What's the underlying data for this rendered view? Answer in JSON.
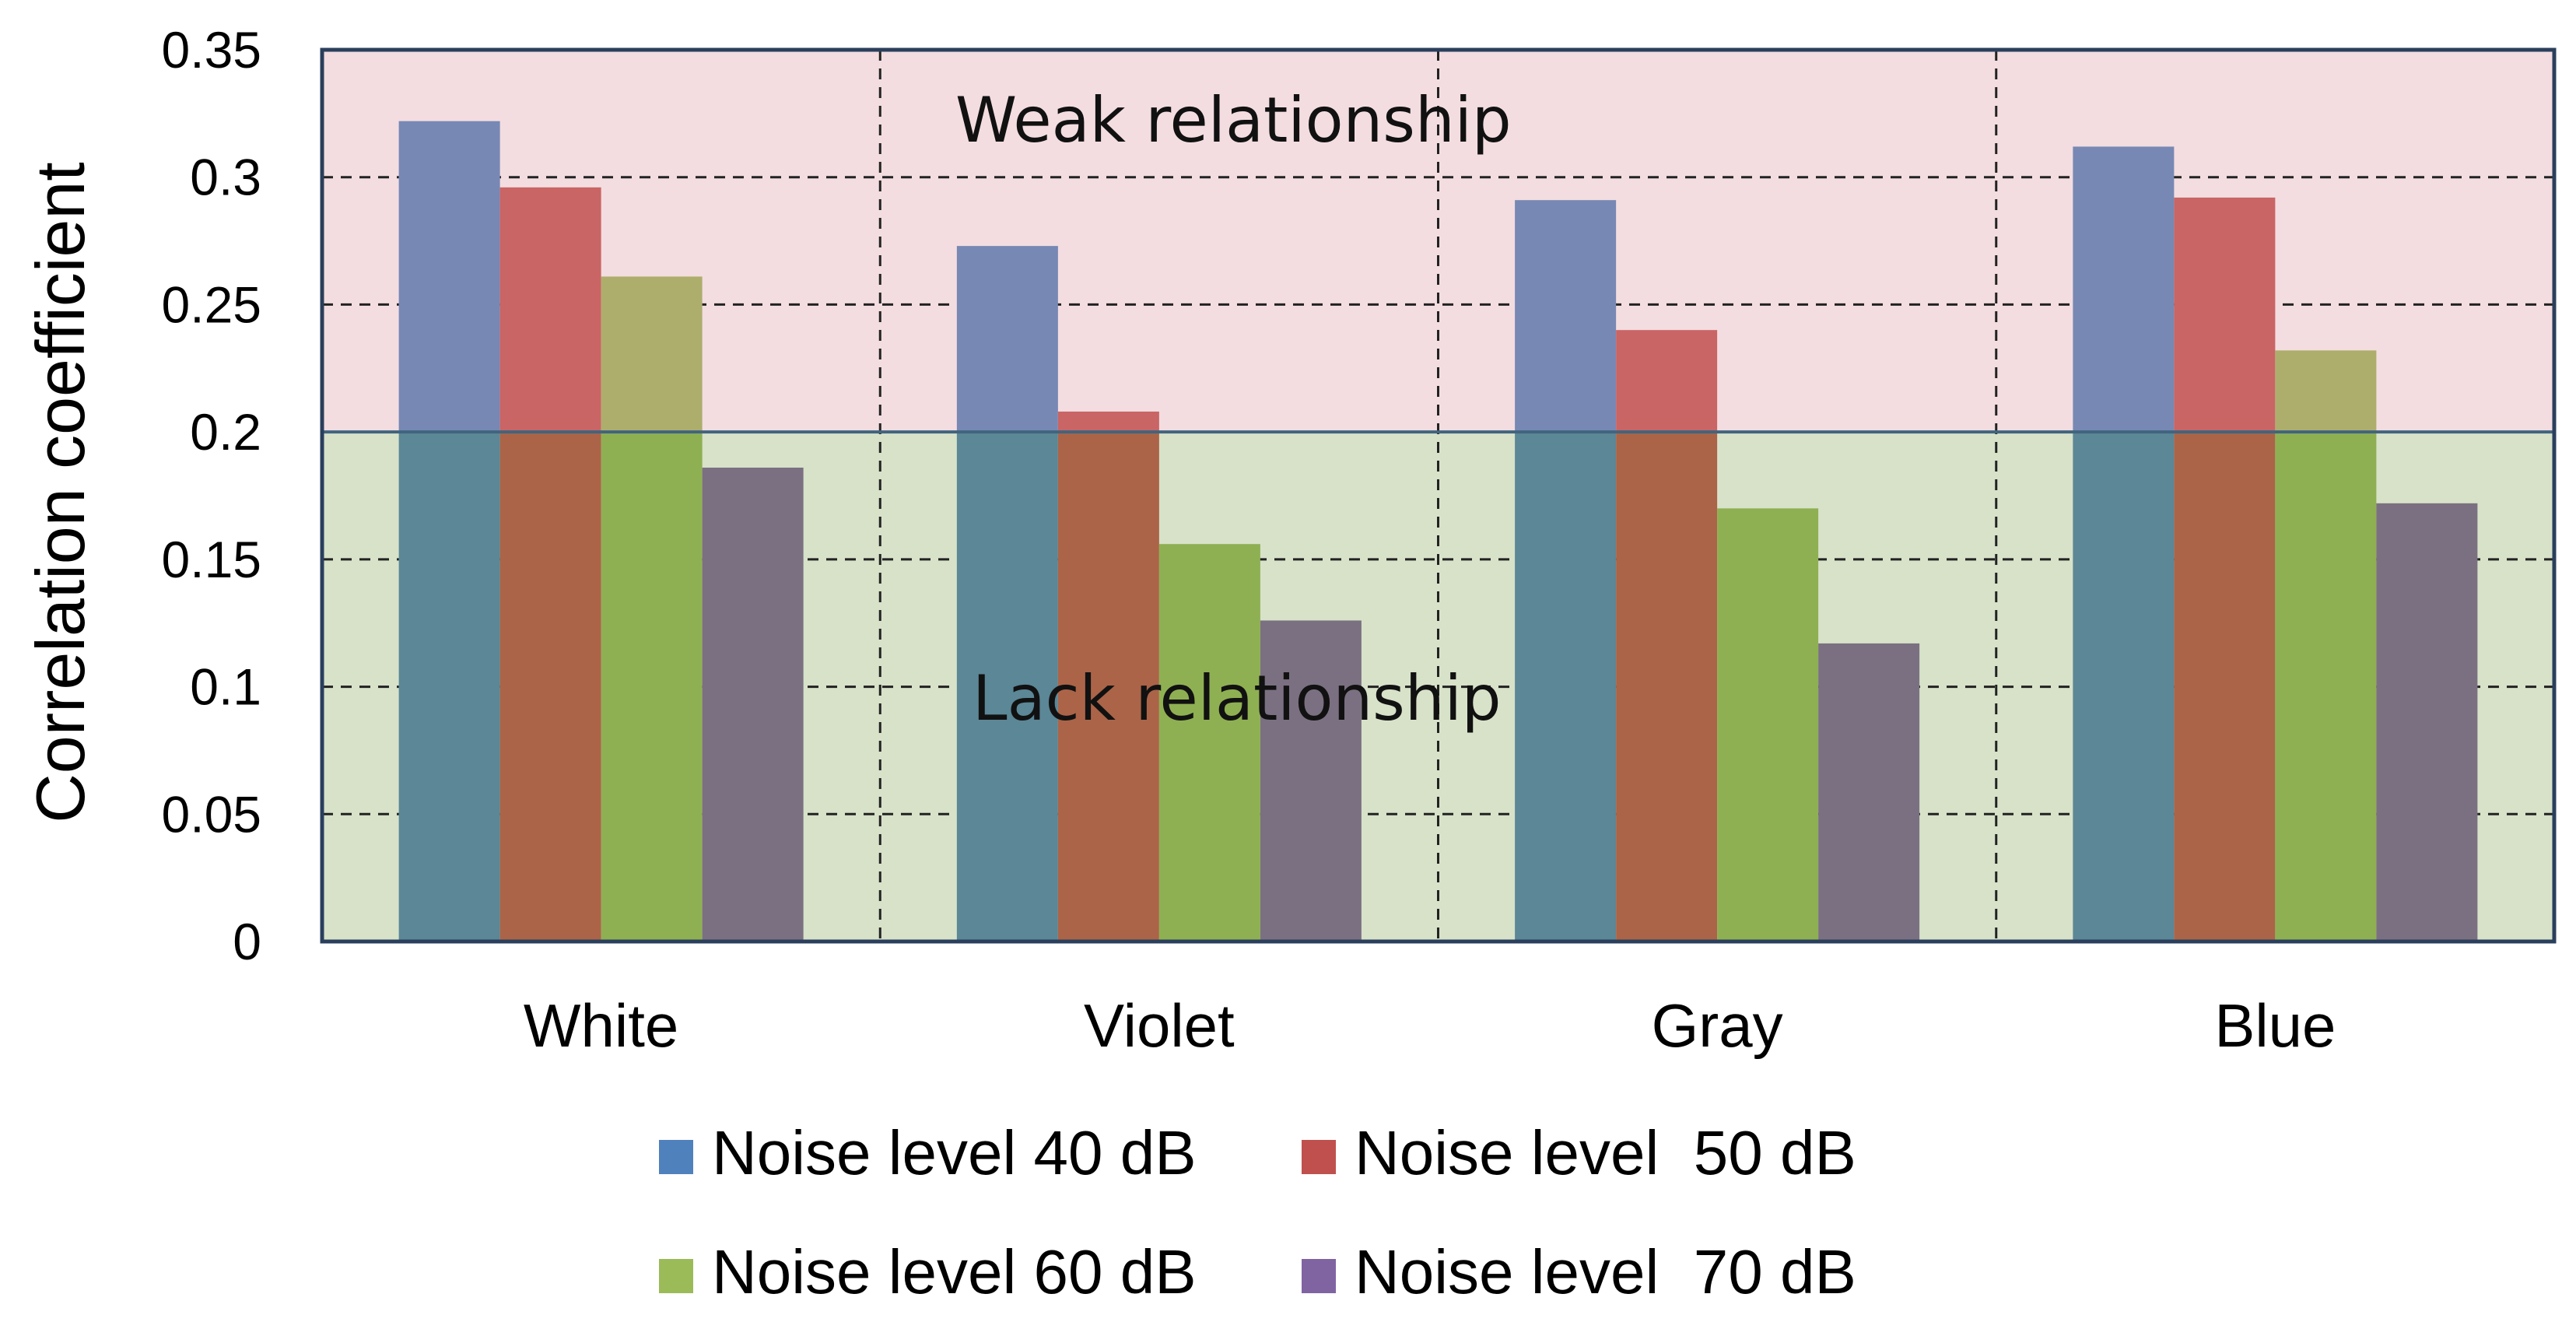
{
  "chart_data": {
    "type": "bar",
    "title": "",
    "xlabel": "",
    "ylabel": "Correlation coefficient",
    "ylim": [
      0,
      0.35
    ],
    "yticks": [
      0,
      0.05,
      0.1,
      0.15,
      0.2,
      0.25,
      0.3,
      0.35
    ],
    "ytick_labels": [
      "0",
      "0.05",
      "0.1",
      "0.15",
      "0.2",
      "0.25",
      "0.3",
      "0.35"
    ],
    "grid": true,
    "categories": [
      "White",
      "Violet",
      "Gray",
      "Blue"
    ],
    "series": [
      {
        "name": "Noise level 40 dB",
        "values": [
          0.322,
          0.273,
          0.291,
          0.312
        ],
        "color": "#7788b4",
        "legend_color": "#4f81bd"
      },
      {
        "name": "Noise level  50 dB",
        "values": [
          0.296,
          0.208,
          0.24,
          0.292
        ],
        "color": "#c96565",
        "legend_color": "#c0504d"
      },
      {
        "name": "Noise level 60 dB",
        "values": [
          0.261,
          0.156,
          0.17,
          0.232
        ],
        "color": "#aeae6c",
        "legend_color": "#9bbb59"
      },
      {
        "name": "Noise level  70 dB",
        "values": [
          0.186,
          0.126,
          0.117,
          0.172
        ],
        "color": "#7b7081",
        "legend_color": "#8064a2"
      }
    ],
    "bands": [
      {
        "label": "Weak relationship",
        "from": 0.2,
        "to": 0.35,
        "color": "#f3dde0"
      },
      {
        "label": "Lack relationship",
        "from": 0,
        "to": 0.2,
        "color": "#d7e2c9"
      }
    ],
    "lower_band_bar_colors": [
      "#5b8796",
      "#ab6448",
      "#8fb052",
      "#7b7081"
    ],
    "legend_position": "bottom"
  }
}
